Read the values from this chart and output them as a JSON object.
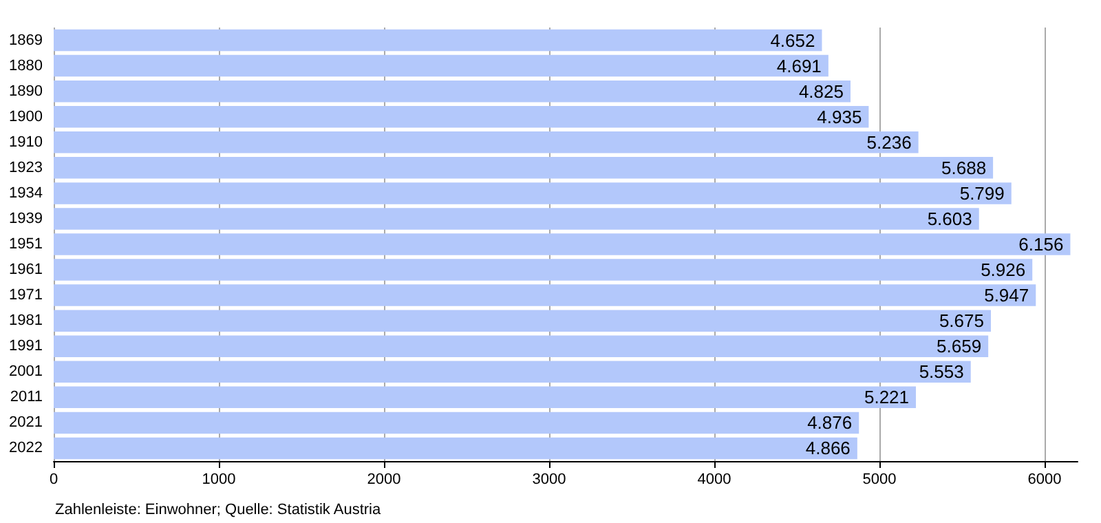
{
  "chart_data": {
    "type": "bar",
    "orientation": "horizontal",
    "categories": [
      "1869",
      "1880",
      "1890",
      "1900",
      "1910",
      "1923",
      "1934",
      "1939",
      "1951",
      "1961",
      "1971",
      "1981",
      "1991",
      "2001",
      "2011",
      "2021",
      "2022"
    ],
    "values": [
      4652,
      4691,
      4825,
      4935,
      5236,
      5688,
      5799,
      5603,
      6156,
      5926,
      5947,
      5675,
      5659,
      5553,
      5221,
      4876,
      4866
    ],
    "value_labels": [
      "4.652",
      "4.691",
      "4.825",
      "4.935",
      "5.236",
      "5.688",
      "5.799",
      "5.603",
      "6.156",
      "5.926",
      "5.947",
      "5.675",
      "5.659",
      "5.553",
      "5.221",
      "4.876",
      "4.866"
    ],
    "color": "#b3c8fb",
    "xlim": [
      0,
      6200
    ],
    "xticks": [
      0,
      1000,
      2000,
      3000,
      4000,
      5000,
      6000
    ],
    "grid": "x",
    "annotations": [
      "Zahlenleiste: Einwohner; Quelle: Statistik Austria"
    ]
  }
}
